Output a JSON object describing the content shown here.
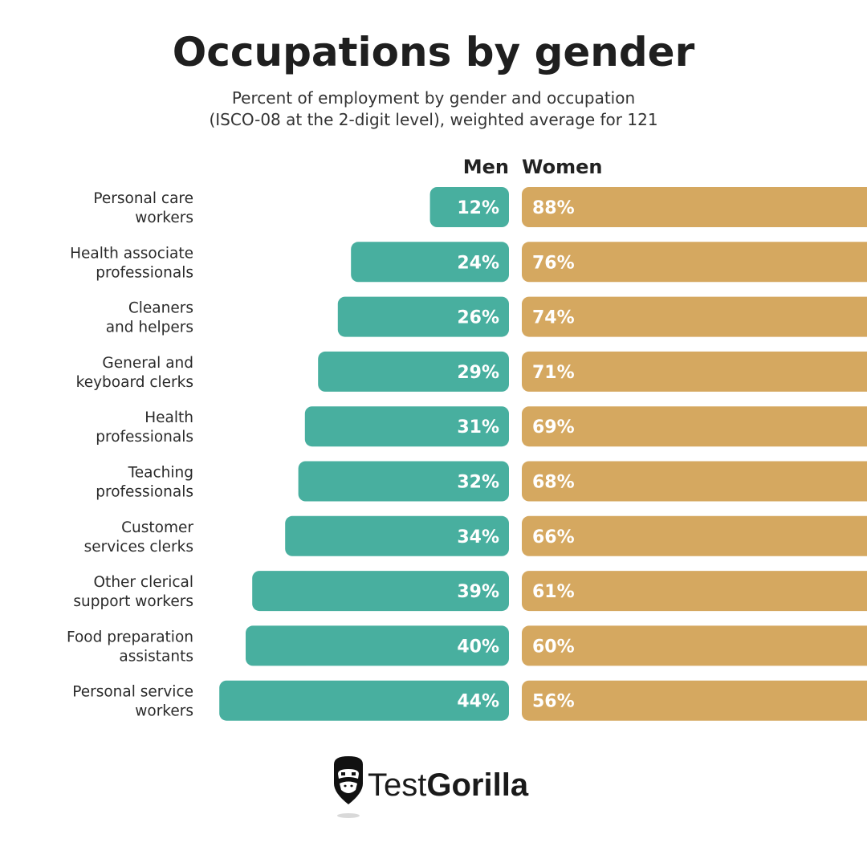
{
  "chart_data": {
    "type": "bar",
    "title": "Occupations by gender",
    "subtitle": [
      "Percent of employment by gender and occupation",
      "(ISCO-08 at the 2-digit level), weighted average for 121"
    ],
    "categories": [
      [
        "Personal care",
        "workers"
      ],
      [
        "Health associate",
        "professionals"
      ],
      [
        "Cleaners",
        "and helpers"
      ],
      [
        "General and",
        "keyboard clerks"
      ],
      [
        "Health",
        "professionals"
      ],
      [
        "Teaching",
        "professionals"
      ],
      [
        "Customer",
        "services clerks"
      ],
      [
        "Other clerical",
        "support workers"
      ],
      [
        "Food preparation",
        "assistants"
      ],
      [
        "Personal service",
        "workers"
      ]
    ],
    "series": [
      {
        "name": "Men",
        "values": [
          12,
          24,
          26,
          29,
          31,
          32,
          34,
          39,
          40,
          44
        ],
        "color": "#48AF9F"
      },
      {
        "name": "Women",
        "values": [
          88,
          76,
          74,
          71,
          69,
          68,
          66,
          61,
          60,
          56
        ],
        "color": "#D5A860"
      }
    ],
    "value_suffix": "%",
    "xlabel": "",
    "ylabel": "",
    "ylim": [
      0,
      100
    ]
  },
  "brand": {
    "name_part1": "Test",
    "name_part2": "Gorilla",
    "logo_icon": "gorilla-icon",
    "text_color": "#1A1A1A"
  }
}
